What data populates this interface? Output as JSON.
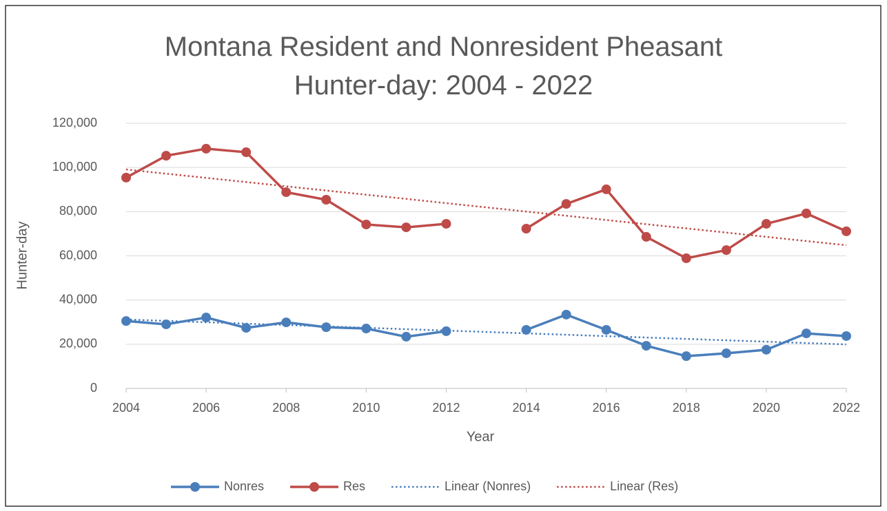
{
  "chart_data": {
    "type": "line",
    "title": "Montana Resident and Nonresident Pheasant Hunter-day: 2004 - 2022",
    "x_label": "Year",
    "y_label": "Hunter-day",
    "x": [
      2004,
      2005,
      2006,
      2007,
      2008,
      2009,
      2010,
      2011,
      2012,
      2013,
      2014,
      2015,
      2016,
      2017,
      2018,
      2019,
      2020,
      2021,
      2022
    ],
    "series": [
      {
        "name": "Nonres",
        "color": "#4a7ebb",
        "values": [
          30500,
          29000,
          32100,
          27400,
          29900,
          27700,
          27100,
          23400,
          25900,
          null,
          26500,
          33400,
          26500,
          19300,
          14600,
          15900,
          17500,
          24900,
          23700
        ]
      },
      {
        "name": "Res",
        "color": "#be4b48",
        "values": [
          95400,
          105300,
          108500,
          106900,
          88800,
          85400,
          74200,
          72900,
          74500,
          null,
          72300,
          83500,
          90100,
          68600,
          58900,
          62600,
          74500,
          79200,
          71100
        ]
      },
      {
        "name": "Linear (Nonres)",
        "color": "#4a7ebb",
        "dashed": true,
        "x": [
          2004,
          2022
        ],
        "values": [
          31200,
          19900
        ]
      },
      {
        "name": "Linear (Res)",
        "color": "#be4b48",
        "dashed": true,
        "x": [
          2004,
          2022
        ],
        "values": [
          99100,
          64800
        ]
      }
    ],
    "xlim": [
      2004,
      2022
    ],
    "xticks": [
      2004,
      2006,
      2008,
      2010,
      2012,
      2014,
      2016,
      2018,
      2020,
      2022
    ],
    "ylim": [
      0,
      120000
    ],
    "yticks": [
      0,
      {
        "value": 20000,
        "label": "20,000"
      },
      {
        "value": 40000,
        "label": "40,000"
      },
      {
        "value": 60000,
        "label": "60,000"
      },
      {
        "value": 80000,
        "label": "80,000"
      },
      {
        "value": 100000,
        "label": "100,000"
      },
      {
        "value": 120000,
        "label": "120,000"
      }
    ],
    "grid": true,
    "legend": "bottom"
  }
}
